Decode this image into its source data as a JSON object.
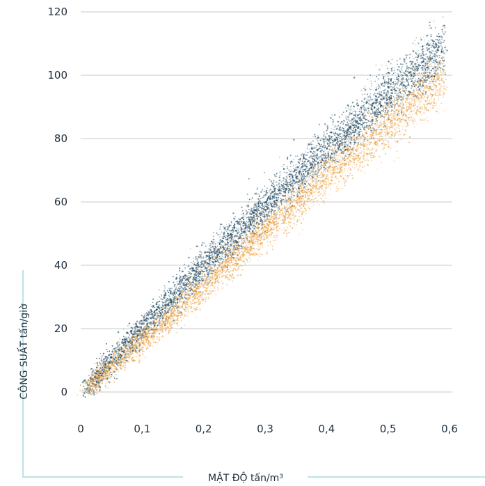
{
  "chart_data": {
    "type": "scatter",
    "xlabel": "MẬT ĐỘ tấn/m³",
    "ylabel": "CÔNG SUẤT tấn/giờ",
    "xlim": [
      0,
      0.6
    ],
    "ylim": [
      0,
      120
    ],
    "x_ticks": [
      0,
      0.1,
      0.2,
      0.3,
      0.4,
      0.5,
      0.6
    ],
    "x_tick_labels": [
      "0",
      "0,1",
      "0,2",
      "0,3",
      "0,4",
      "0,5",
      "0,6"
    ],
    "y_ticks": [
      0,
      20,
      40,
      60,
      80,
      100,
      120
    ],
    "y_tick_labels": [
      "0",
      "20",
      "40",
      "60",
      "80",
      "100",
      "120"
    ],
    "grid": "horizontal",
    "series": [
      {
        "color": "#1f4a63",
        "trend": [
          [
            0.01,
            1
          ],
          [
            0.1,
            20
          ],
          [
            0.2,
            39.5
          ],
          [
            0.3,
            58.5
          ],
          [
            0.4,
            76.5
          ],
          [
            0.5,
            93.5
          ],
          [
            0.59,
            108
          ]
        ],
        "spread": 3.8,
        "points": 5200
      },
      {
        "color": "#f0a445",
        "trend": [
          [
            0.01,
            1
          ],
          [
            0.1,
            16
          ],
          [
            0.2,
            33
          ],
          [
            0.3,
            51
          ],
          [
            0.4,
            68
          ],
          [
            0.5,
            84
          ],
          [
            0.59,
            99
          ]
        ],
        "spread": 3.4,
        "points": 4200
      }
    ]
  }
}
